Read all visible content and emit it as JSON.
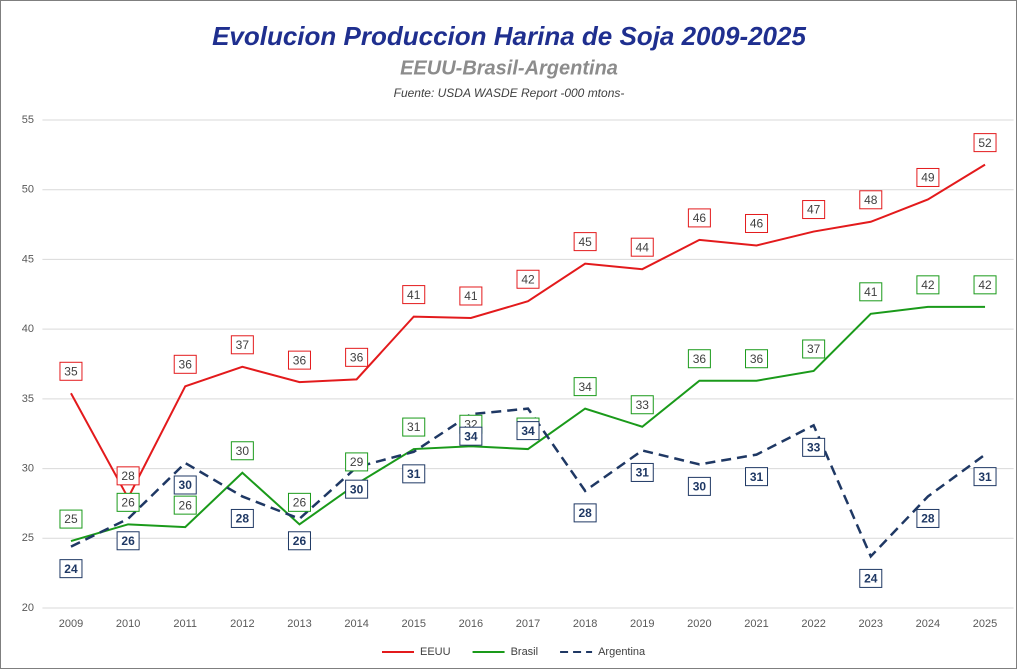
{
  "chart_data": {
    "type": "line",
    "title": "Evolucion Produccion Harina de Soja 2009-2025",
    "subtitle": "EEUU-Brasil-Argentina",
    "source": "Fuente: USDA WASDE Report -000 mtons-",
    "categories": [
      "2009",
      "2010",
      "2011",
      "2012",
      "2013",
      "2014",
      "2015",
      "2016",
      "2017",
      "2018",
      "2019",
      "2020",
      "2021",
      "2022",
      "2023",
      "2024",
      "2025"
    ],
    "ylim": [
      20,
      55
    ],
    "yticks": [
      20,
      25,
      30,
      35,
      40,
      45,
      50,
      55
    ],
    "grid": true,
    "legend": "bottom",
    "series": [
      {
        "name": "EEUU",
        "color": "#e31a1c",
        "dash": false,
        "values": [
          35.4,
          27.9,
          35.9,
          37.3,
          36.2,
          36.4,
          40.9,
          40.8,
          42.0,
          44.7,
          44.3,
          46.4,
          46.0,
          47.0,
          47.7,
          49.3,
          51.8
        ],
        "value_labels": [
          "35",
          "28",
          "36",
          "37",
          "36",
          "36",
          "41",
          "41",
          "42",
          "45",
          "44",
          "46",
          "46",
          "47",
          "48",
          "49",
          "52"
        ]
      },
      {
        "name": "Brasil",
        "color": "#1a9a1a",
        "dash": false,
        "values": [
          24.8,
          26.0,
          25.8,
          29.7,
          26.0,
          28.9,
          31.4,
          31.6,
          31.4,
          34.3,
          33.0,
          36.3,
          36.3,
          37.0,
          41.1,
          41.6,
          41.6
        ],
        "value_labels": [
          "25",
          "26",
          "26",
          "30",
          "26",
          "29",
          "31",
          "32",
          "31",
          "34",
          "33",
          "36",
          "36",
          "37",
          "41",
          "42",
          "42"
        ]
      },
      {
        "name": "Argentina",
        "color": "#1f3864",
        "dash": true,
        "values": [
          24.4,
          26.4,
          30.4,
          28.0,
          26.4,
          30.1,
          31.2,
          33.9,
          34.3,
          28.4,
          31.3,
          30.3,
          31.0,
          33.1,
          23.7,
          28.0,
          31.0
        ],
        "value_labels": [
          "24",
          "26",
          "30",
          "28",
          "26",
          "30",
          "31",
          "34",
          "34",
          "28",
          "31",
          "30",
          "31",
          "33",
          "24",
          "28",
          "31"
        ]
      }
    ]
  }
}
